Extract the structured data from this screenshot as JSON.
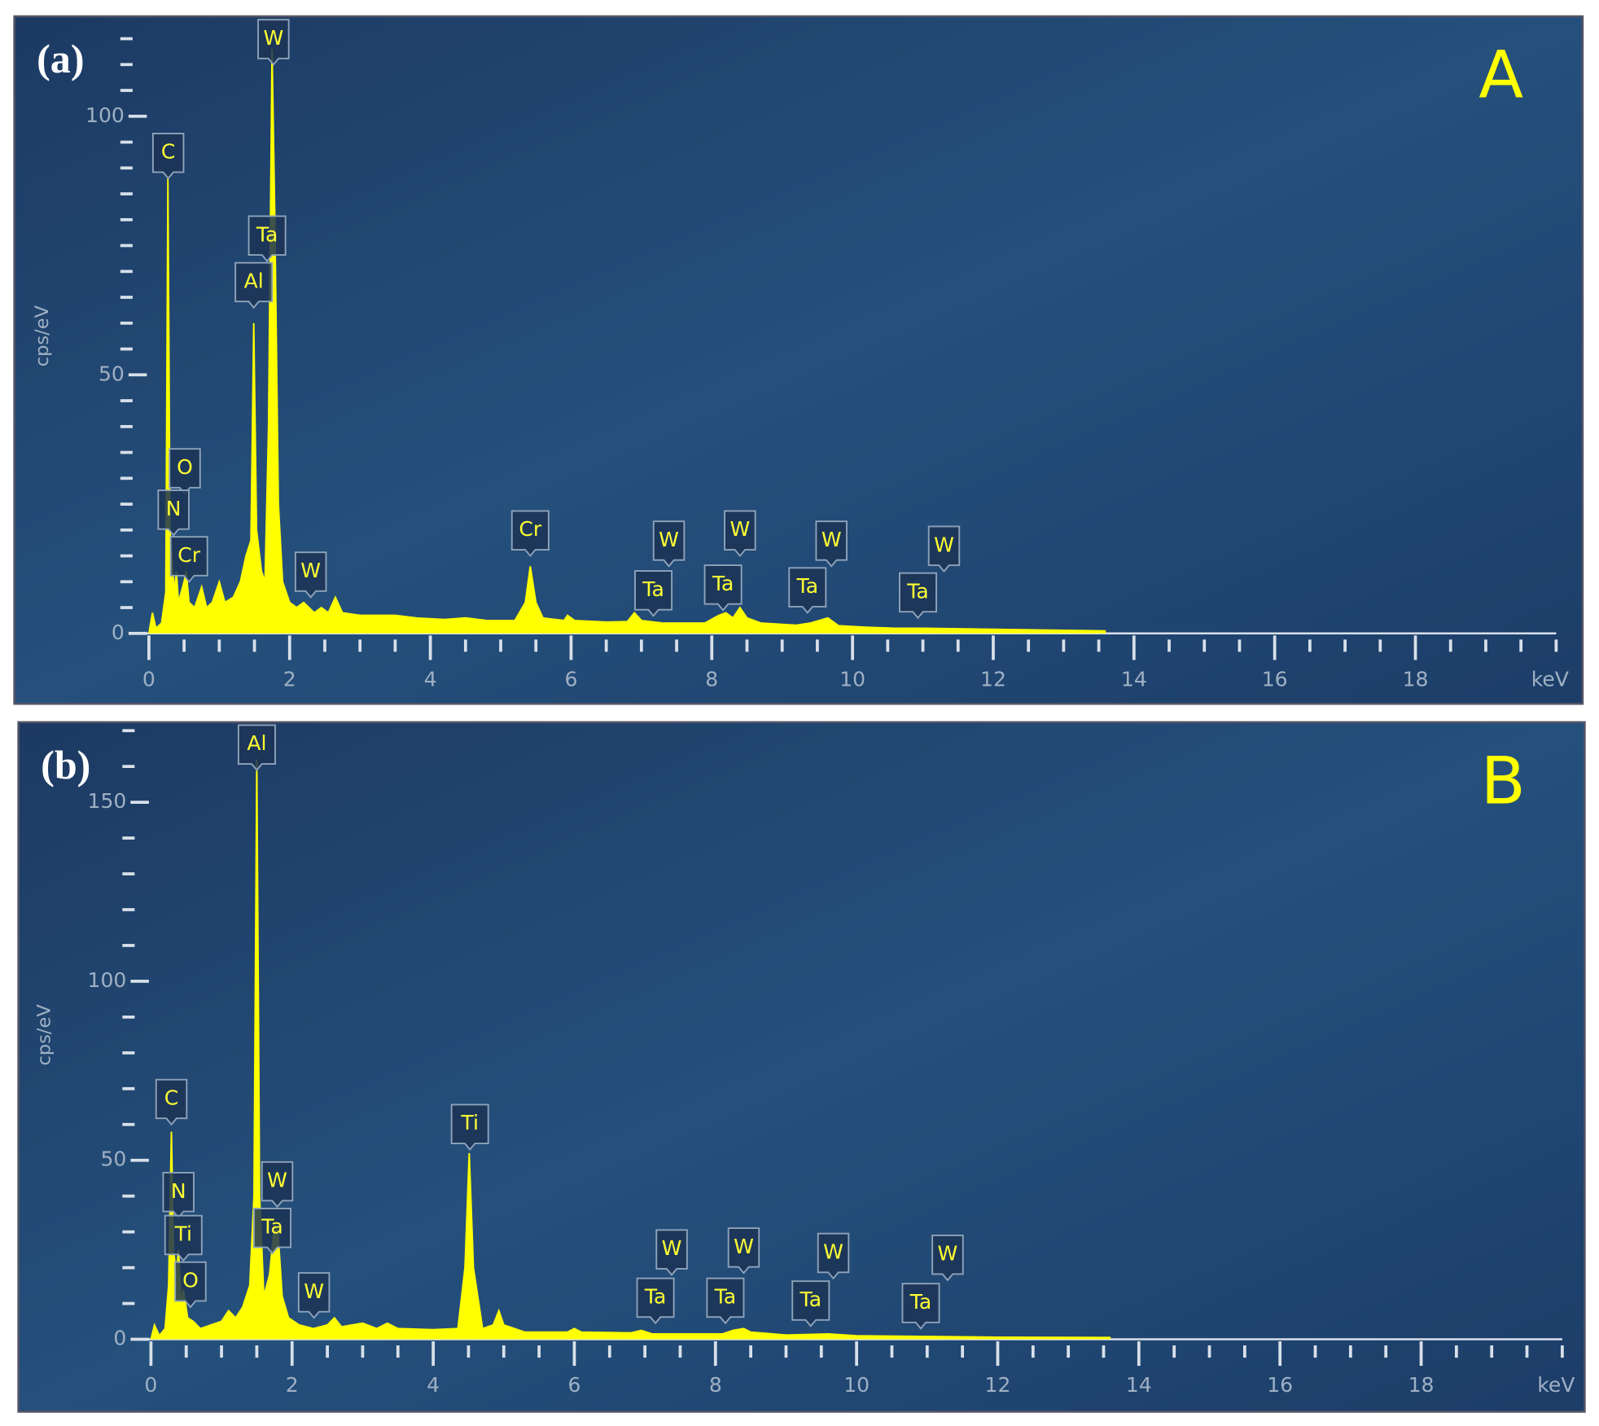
{
  "chart_data": [
    {
      "type": "area",
      "panel_label": "(a)",
      "title": "A",
      "y_label": "cps/eV",
      "x_label": "keV",
      "color": "#ffff00",
      "xlim": [
        0,
        20
      ],
      "ylim": [
        0,
        115
      ],
      "xticks": [
        0,
        2,
        4,
        6,
        8,
        10,
        12,
        14,
        16,
        18
      ],
      "xminorticks": [
        0.5,
        1,
        1.5,
        2.5,
        3,
        3.5,
        4.5,
        5,
        5.5,
        6.5,
        7,
        7.5,
        8.5,
        9,
        9.5,
        10.5,
        11,
        11.5,
        12.5,
        13,
        13.5,
        14.5,
        15,
        15.5,
        16.5,
        17,
        17.5,
        18.5,
        19,
        19.5,
        20
      ],
      "yticks": [
        0,
        50,
        100
      ],
      "yminorticks": [
        5,
        10,
        15,
        20,
        25,
        30,
        35,
        40,
        45,
        55,
        60,
        65,
        70,
        75,
        80,
        85,
        90,
        95,
        105,
        110,
        115
      ],
      "x": [
        0,
        0.05,
        0.1,
        0.18,
        0.24,
        0.27,
        0.3,
        0.36,
        0.39,
        0.42,
        0.5,
        0.53,
        0.57,
        0.65,
        0.75,
        0.82,
        0.9,
        1.0,
        1.08,
        1.2,
        1.3,
        1.38,
        1.45,
        1.49,
        1.53,
        1.6,
        1.65,
        1.7,
        1.75,
        1.79,
        1.84,
        1.9,
        2.0,
        2.1,
        2.2,
        2.35,
        2.45,
        2.55,
        2.65,
        2.75,
        3.0,
        3.3,
        3.5,
        3.8,
        4.2,
        4.5,
        4.8,
        5.2,
        5.35,
        5.42,
        5.5,
        5.6,
        5.9,
        5.95,
        6.05,
        6.5,
        6.8,
        6.9,
        7.0,
        7.3,
        7.9,
        8.1,
        8.2,
        8.3,
        8.4,
        8.5,
        8.7,
        9.2,
        9.4,
        9.65,
        9.8,
        10.2,
        10.6,
        11,
        12,
        13,
        13.6
      ],
      "values": [
        0,
        4,
        1,
        2,
        8,
        88,
        20,
        8,
        12,
        6,
        10,
        12,
        6,
        5,
        9,
        5,
        6,
        10,
        6,
        7,
        10,
        15,
        18,
        60,
        20,
        12,
        10,
        40,
        113,
        80,
        25,
        10,
        6,
        5,
        6,
        4,
        5,
        4,
        7,
        4,
        3.5,
        3.5,
        3.5,
        3,
        2.7,
        3,
        2.5,
        2.5,
        6,
        13,
        6,
        3,
        2.5,
        3.5,
        2.5,
        2.2,
        2.3,
        4,
        2.5,
        2,
        2,
        3.5,
        4,
        3,
        5,
        3,
        2,
        1.6,
        2,
        3,
        1.5,
        1.2,
        1,
        1,
        0.8,
        0.6,
        0.5
      ],
      "annotations": [
        {
          "text": "C",
          "x": 0.275,
          "y": 88
        },
        {
          "text": "W",
          "x": 1.77,
          "y": 110
        },
        {
          "text": "Ta",
          "x": 1.68,
          "y": 72
        },
        {
          "text": "Al",
          "x": 1.49,
          "y": 63
        },
        {
          "text": "O",
          "x": 0.51,
          "y": 27
        },
        {
          "text": "N",
          "x": 0.35,
          "y": 19
        },
        {
          "text": "Cr",
          "x": 0.57,
          "y": 10
        },
        {
          "text": "W",
          "x": 2.3,
          "y": 7
        },
        {
          "text": "Cr",
          "x": 5.42,
          "y": 15
        },
        {
          "text": "Ta",
          "x": 7.17,
          "y": 3.4
        },
        {
          "text": "W",
          "x": 7.39,
          "y": 13
        },
        {
          "text": "Ta",
          "x": 8.16,
          "y": 4.5
        },
        {
          "text": "W",
          "x": 8.4,
          "y": 15
        },
        {
          "text": "Ta",
          "x": 9.36,
          "y": 4
        },
        {
          "text": "W",
          "x": 9.7,
          "y": 13
        },
        {
          "text": "Ta",
          "x": 10.93,
          "y": 3
        },
        {
          "text": "W",
          "x": 11.3,
          "y": 12
        }
      ]
    },
    {
      "type": "area",
      "panel_label": "(b)",
      "title": "B",
      "y_label": "cps/eV",
      "x_label": "keV",
      "color": "#ffff00",
      "xlim": [
        0,
        20
      ],
      "ylim": [
        0,
        170
      ],
      "xticks": [
        0,
        2,
        4,
        6,
        8,
        10,
        12,
        14,
        16,
        18
      ],
      "xminorticks": [
        0.5,
        1,
        1.5,
        2.5,
        3,
        3.5,
        4.5,
        5,
        5.5,
        6.5,
        7,
        7.5,
        8.5,
        9,
        9.5,
        10.5,
        11,
        11.5,
        12.5,
        13,
        13.5,
        14.5,
        15,
        15.5,
        16.5,
        17,
        17.5,
        18.5,
        19,
        19.5,
        20
      ],
      "yticks": [
        0,
        50,
        100,
        150
      ],
      "yminorticks": [
        10,
        20,
        30,
        40,
        60,
        70,
        80,
        90,
        110,
        120,
        130,
        140,
        160,
        170
      ],
      "x": [
        0,
        0.05,
        0.12,
        0.2,
        0.25,
        0.29,
        0.32,
        0.36,
        0.39,
        0.43,
        0.46,
        0.52,
        0.6,
        0.7,
        0.85,
        1.0,
        1.1,
        1.2,
        1.3,
        1.4,
        1.46,
        1.5,
        1.54,
        1.6,
        1.68,
        1.75,
        1.8,
        1.86,
        1.95,
        2.1,
        2.3,
        2.5,
        2.6,
        2.7,
        3.0,
        3.2,
        3.35,
        3.5,
        4.0,
        4.35,
        4.45,
        4.51,
        4.57,
        4.7,
        4.85,
        4.93,
        5.0,
        5.3,
        5.9,
        6.0,
        6.1,
        6.8,
        6.95,
        7.1,
        8.1,
        8.25,
        8.4,
        8.5,
        9.0,
        9.6,
        10,
        11,
        12,
        13.6
      ],
      "values": [
        0,
        4,
        1,
        3,
        15,
        58,
        25,
        18,
        25,
        10,
        14,
        6,
        5,
        3,
        4,
        5,
        8,
        6,
        9,
        15,
        40,
        162,
        40,
        12,
        18,
        32,
        30,
        12,
        6,
        4,
        3,
        4,
        6,
        3.5,
        4.5,
        3,
        4.5,
        3,
        2.7,
        3,
        20,
        52,
        20,
        3,
        4,
        8,
        4,
        2,
        2,
        3,
        2,
        1.8,
        2.5,
        1.5,
        1.5,
        2.5,
        3,
        2,
        1.2,
        1.5,
        1,
        0.8,
        0.6,
        0.5
      ],
      "annotations": [
        {
          "text": "Al",
          "x": 1.5,
          "y": 159
        },
        {
          "text": "C",
          "x": 0.29,
          "y": 60
        },
        {
          "text": "N",
          "x": 0.39,
          "y": 34
        },
        {
          "text": "Ti",
          "x": 0.46,
          "y": 22
        },
        {
          "text": "O",
          "x": 0.56,
          "y": 9
        },
        {
          "text": "W",
          "x": 1.79,
          "y": 37
        },
        {
          "text": "Ta",
          "x": 1.72,
          "y": 24
        },
        {
          "text": "W",
          "x": 2.31,
          "y": 6
        },
        {
          "text": "Ti",
          "x": 4.52,
          "y": 53
        },
        {
          "text": "Ta",
          "x": 7.15,
          "y": 4.5
        },
        {
          "text": "W",
          "x": 7.38,
          "y": 18
        },
        {
          "text": "Ta",
          "x": 8.14,
          "y": 4.5
        },
        {
          "text": "W",
          "x": 8.4,
          "y": 18.5
        },
        {
          "text": "Ta",
          "x": 9.35,
          "y": 3.7
        },
        {
          "text": "W",
          "x": 9.67,
          "y": 17
        },
        {
          "text": "Ta",
          "x": 10.91,
          "y": 3
        },
        {
          "text": "W",
          "x": 11.29,
          "y": 16.5
        }
      ]
    }
  ]
}
